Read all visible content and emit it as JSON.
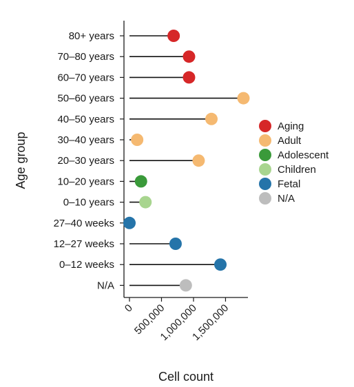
{
  "chart_data": {
    "type": "lollipop",
    "xlabel": "Cell count",
    "ylabel": "Age group",
    "xlim": [
      0,
      1850000
    ],
    "x_ticks": [
      0,
      500000,
      1000000,
      1500000
    ],
    "x_tick_labels": [
      "0",
      "500,000",
      "1,000,000",
      "1,500,000"
    ],
    "categories": [
      "80+ years",
      "70–80 years",
      "60–70 years",
      "50–60 years",
      "40–50 years",
      "30–40 years",
      "20–30 years",
      "10–20 years",
      "0–10 years",
      "27–40 weeks",
      "12–27 weeks",
      "0–12 weeks",
      "N/A"
    ],
    "values": [
      690000,
      930000,
      930000,
      1780000,
      1280000,
      120000,
      1080000,
      180000,
      250000,
      0,
      720000,
      1420000,
      880000
    ],
    "groups": [
      "Aging",
      "Aging",
      "Aging",
      "Adult",
      "Adult",
      "Adult",
      "Adult",
      "Adolescent",
      "Children",
      "Fetal",
      "Fetal",
      "Fetal",
      "N/A"
    ],
    "legend": [
      {
        "name": "Aging",
        "color": "#d62728"
      },
      {
        "name": "Adult",
        "color": "#f5b971"
      },
      {
        "name": "Adolescent",
        "color": "#3a9a3a"
      },
      {
        "name": "Children",
        "color": "#a8d58f"
      },
      {
        "name": "Fetal",
        "color": "#2574a9"
      },
      {
        "name": "N/A",
        "color": "#bdbdbd"
      }
    ],
    "legend_position": "right",
    "grid": false
  }
}
